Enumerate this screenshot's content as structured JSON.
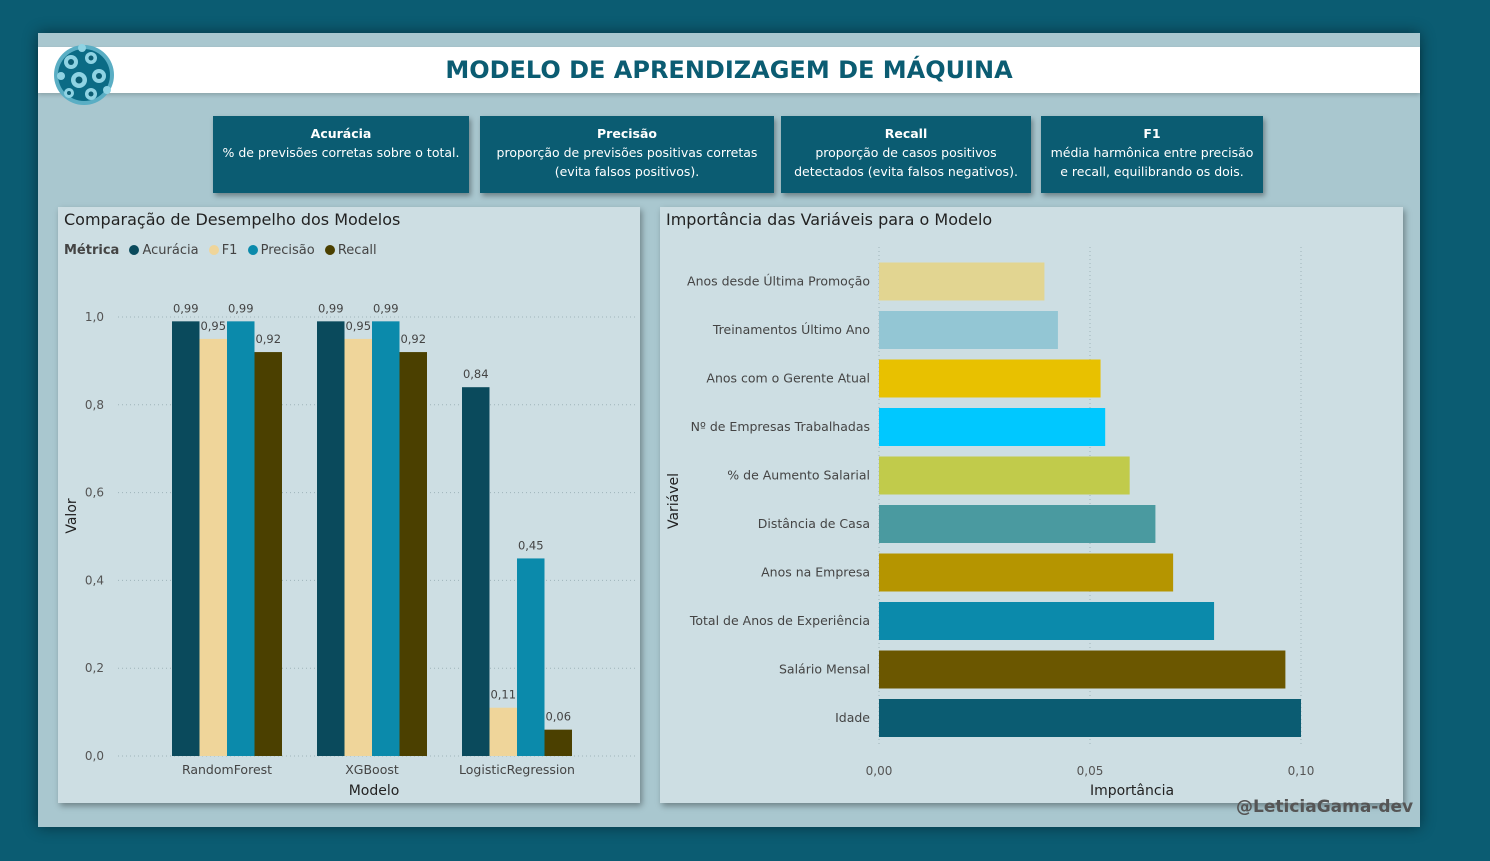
{
  "header": {
    "title": "MODELO DE APRENDIZAGEM DE MÁQUINA"
  },
  "cards": [
    {
      "title": "Acurácia",
      "desc": "% de previsões corretas sobre o total."
    },
    {
      "title": "Precisão",
      "desc": "proporção de previsões positivas corretas (evita falsos positivos)."
    },
    {
      "title": "Recall",
      "desc": "proporção de casos positivos detectados (evita falsos negativos)."
    },
    {
      "title": "F1",
      "desc": "média harmônica entre precisão e recall, equilibrando os dois."
    }
  ],
  "colors": {
    "background": "#0b5c72",
    "panel": "#cddee3",
    "frame": "#a9c7cf"
  },
  "watermark": "@LeticiaGama-dev",
  "chart_data": [
    {
      "type": "bar",
      "title": "Comparação de Desempelho dos Modelos",
      "legend_title": "Métrica",
      "xlabel": "Modelo",
      "ylabel": "Valor",
      "ylim": [
        0,
        1.05
      ],
      "yticks": [
        "0,0",
        "0,2",
        "0,4",
        "0,6",
        "0,8",
        "1,0"
      ],
      "grid": true,
      "legend_position": "top-left",
      "categories": [
        "RandomForest",
        "XGBoost",
        "LogisticRegression"
      ],
      "series": [
        {
          "name": "Acurácia",
          "color": "#0a4a5c",
          "values": [
            0.99,
            0.99,
            0.84
          ],
          "labels": [
            "0,99",
            "0,99",
            "0,84"
          ]
        },
        {
          "name": "F1",
          "color": "#efd59a",
          "values": [
            0.95,
            0.95,
            0.11
          ],
          "labels": [
            "0,95",
            "0,95",
            "0,11"
          ]
        },
        {
          "name": "Precisão",
          "color": "#0b8aab",
          "values": [
            0.99,
            0.99,
            0.45
          ],
          "labels": [
            "0,99",
            "0,99",
            "0,45"
          ]
        },
        {
          "name": "Recall",
          "color": "#4b4000",
          "values": [
            0.92,
            0.92,
            0.06
          ],
          "labels": [
            "0,92",
            "0,92",
            "0,06"
          ]
        }
      ]
    },
    {
      "type": "bar",
      "orientation": "horizontal",
      "title": "Importância das Variáveis para o Modelo",
      "xlabel": "Importância",
      "ylabel": "Variável",
      "xlim": [
        0,
        0.1
      ],
      "xticks": [
        "0,00",
        "0,05",
        "0,10"
      ],
      "grid": true,
      "categories": [
        "Anos desde Última Promoção",
        "Treinamentos Último Ano",
        "Anos com o Gerente Atual",
        "Nº de Empresas Trabalhadas",
        "% de Aumento Salarial",
        "Distância de Casa",
        "Anos na Empresa",
        "Total de Anos de Experiência",
        "Salário Mensal",
        "Idade"
      ],
      "values": [
        0.0392,
        0.0424,
        0.0525,
        0.0536,
        0.0594,
        0.0655,
        0.0697,
        0.0794,
        0.0963,
        0.1
      ],
      "colors": [
        "#e2d591",
        "#93c6d4",
        "#e8c100",
        "#00c8ff",
        "#c1cb4b",
        "#4a9aa0",
        "#b59500",
        "#0b8aab",
        "#6b5700",
        "#0b5c72"
      ]
    }
  ]
}
